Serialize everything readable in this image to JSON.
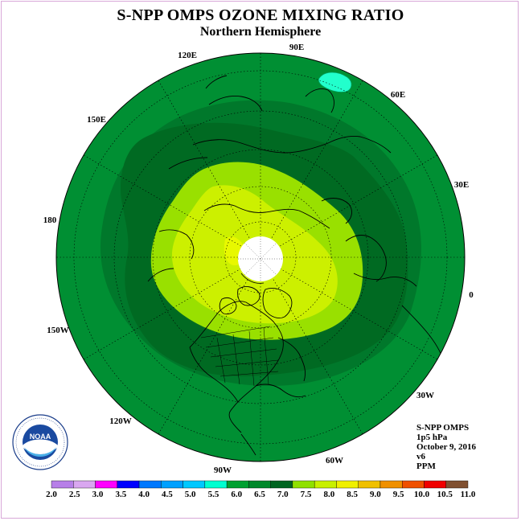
{
  "header": {
    "title": "S-NPP OMPS OZONE MIXING RATIO",
    "subtitle": "Northern Hemisphere"
  },
  "longitude_labels": [
    "90E",
    "60E",
    "30E",
    "0",
    "30W",
    "60W",
    "90W",
    "120W",
    "150W",
    "180",
    "150E",
    "120E"
  ],
  "info_block": {
    "instrument": "S-NPP OMPS",
    "pressure": "1p5 hPa",
    "date": "October 9, 2016",
    "version": "v6",
    "units": "PPM"
  },
  "colorbar": {
    "ticks": [
      "2.0",
      "2.5",
      "3.0",
      "3.5",
      "4.0",
      "4.5",
      "5.0",
      "5.5",
      "6.0",
      "6.5",
      "7.0",
      "7.5",
      "8.0",
      "8.5",
      "9.0",
      "9.5",
      "10.0",
      "10.5",
      "11.0"
    ],
    "colors": [
      "#b77fe8",
      "#d9a7f0",
      "#ff00ff",
      "#0000ff",
      "#0078ff",
      "#00a0ff",
      "#00c8ff",
      "#00ffd0",
      "#00a030",
      "#00882a",
      "#006420",
      "#90e000",
      "#c8f000",
      "#f0f000",
      "#f0c000",
      "#f09000",
      "#f05000",
      "#f00000",
      "#805030"
    ]
  },
  "map_data": {
    "projection": "north polar stereographic",
    "levels": [
      {
        "value": 6.0,
        "color": "#008f33"
      },
      {
        "value": 6.5,
        "color": "#00782b"
      },
      {
        "value": 7.0,
        "color": "#006a22"
      },
      {
        "value": 7.5,
        "color": "#99e000"
      },
      {
        "value": 8.0,
        "color": "#ccf000"
      },
      {
        "value": 8.5,
        "color": "#e8f800"
      },
      {
        "value": 5.5,
        "color": "#22ffcc"
      }
    ]
  },
  "logo": {
    "text": "NOAA"
  }
}
